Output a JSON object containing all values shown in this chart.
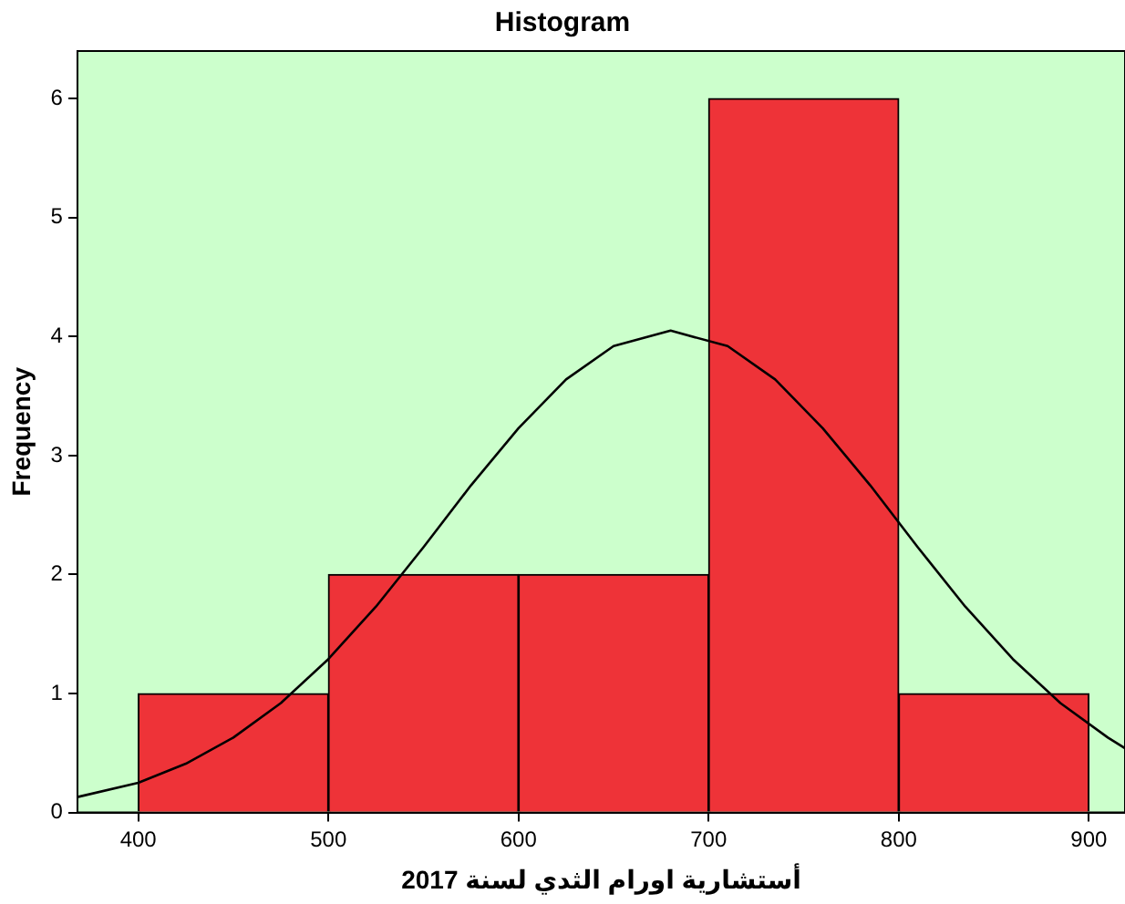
{
  "chart_data": {
    "type": "histogram",
    "title": "Histogram",
    "xlabel": "أستشارية اورام الثدي لسنة 2017",
    "ylabel": "Frequency",
    "bins": [
      400,
      500,
      600,
      700,
      800,
      900
    ],
    "values": [
      1,
      2,
      2,
      6,
      1
    ],
    "color": "#ee3338",
    "series": [
      {
        "type": "line",
        "color": "#000000",
        "x": [
          368,
          400,
          425,
          450,
          475,
          500,
          525,
          550,
          575,
          600,
          625,
          650,
          680,
          710,
          735,
          760,
          785,
          810,
          835,
          860,
          885,
          910,
          919
        ],
        "values": [
          0.13,
          0.25,
          0.41,
          0.63,
          0.92,
          1.29,
          1.73,
          2.23,
          2.75,
          3.23,
          3.64,
          3.92,
          4.05,
          3.92,
          3.64,
          3.23,
          2.75,
          2.23,
          1.73,
          1.29,
          0.92,
          0.63,
          0.54
        ]
      }
    ],
    "xlim": [
      368,
      919
    ],
    "ylim": [
      0,
      6.4
    ],
    "xticks": [
      400,
      500,
      600,
      700,
      800,
      900
    ],
    "yticks": [
      0,
      1,
      2,
      3,
      4,
      5,
      6
    ],
    "grid": false,
    "legend": false,
    "marker": "none",
    "line_style": "solid"
  }
}
